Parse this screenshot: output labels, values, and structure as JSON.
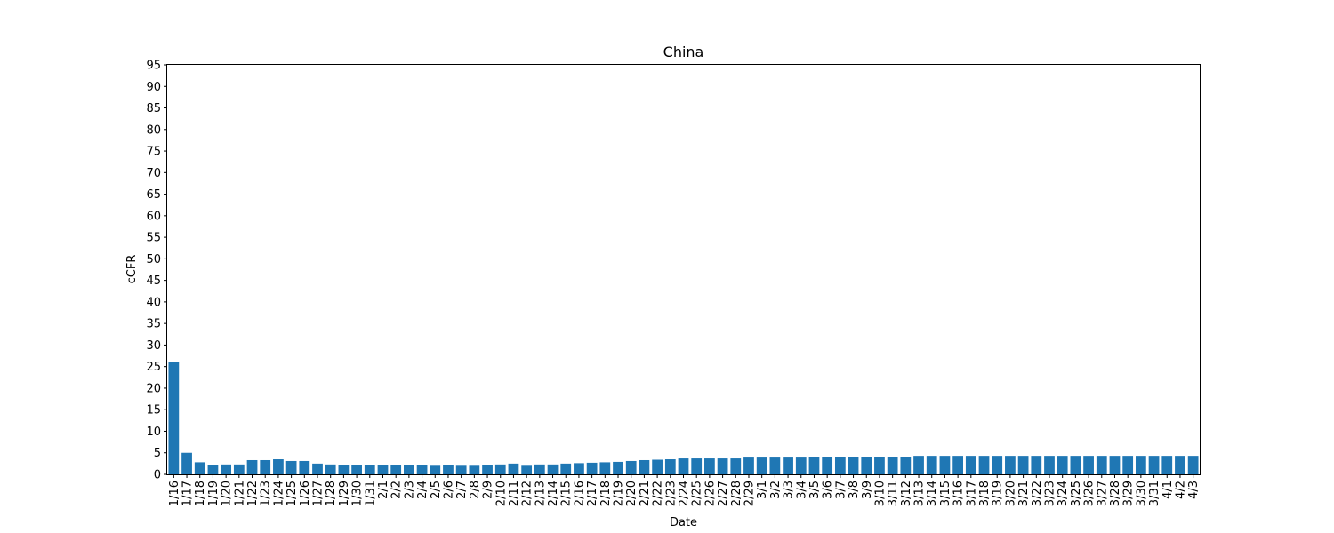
{
  "chart_data": {
    "type": "bar",
    "title": "China",
    "xlabel": "Date",
    "ylabel": "cCFR",
    "ylim": [
      0,
      95
    ],
    "yticks": [
      0,
      5,
      10,
      15,
      20,
      25,
      30,
      35,
      40,
      45,
      50,
      55,
      60,
      65,
      70,
      75,
      80,
      85,
      90,
      95
    ],
    "grid": false,
    "legend": "none",
    "bar_color": "#1f77b4",
    "categories": [
      "1/16",
      "1/17",
      "1/18",
      "1/19",
      "1/20",
      "1/21",
      "1/22",
      "1/23",
      "1/24",
      "1/25",
      "1/26",
      "1/27",
      "1/28",
      "1/29",
      "1/30",
      "1/31",
      "2/1",
      "2/2",
      "2/3",
      "2/4",
      "2/5",
      "2/6",
      "2/7",
      "2/8",
      "2/9",
      "2/10",
      "2/11",
      "2/12",
      "2/13",
      "2/14",
      "2/15",
      "2/16",
      "2/17",
      "2/18",
      "2/19",
      "2/20",
      "2/21",
      "2/22",
      "2/23",
      "2/24",
      "2/25",
      "2/26",
      "2/27",
      "2/28",
      "2/29",
      "3/1",
      "3/2",
      "3/3",
      "3/4",
      "3/5",
      "3/6",
      "3/7",
      "3/8",
      "3/9",
      "3/10",
      "3/11",
      "3/12",
      "3/13",
      "3/14",
      "3/15",
      "3/16",
      "3/17",
      "3/18",
      "3/19",
      "3/20",
      "3/21",
      "3/22",
      "3/23",
      "3/24",
      "3/25",
      "3/26",
      "3/27",
      "3/28",
      "3/29",
      "3/30",
      "3/31",
      "4/1",
      "4/2",
      "4/3"
    ],
    "values": [
      26.1,
      5.0,
      2.8,
      2.1,
      2.3,
      2.3,
      3.3,
      3.3,
      3.5,
      3.1,
      3.1,
      2.5,
      2.3,
      2.2,
      2.2,
      2.2,
      2.2,
      2.1,
      2.1,
      2.1,
      2.0,
      2.1,
      2.0,
      2.0,
      2.2,
      2.3,
      2.5,
      2.0,
      2.3,
      2.3,
      2.5,
      2.6,
      2.7,
      2.8,
      2.9,
      3.1,
      3.3,
      3.4,
      3.5,
      3.7,
      3.7,
      3.7,
      3.7,
      3.7,
      3.9,
      3.9,
      3.9,
      3.9,
      3.9,
      4.1,
      4.1,
      4.1,
      4.1,
      4.1,
      4.1,
      4.1,
      4.1,
      4.3,
      4.3,
      4.3,
      4.3,
      4.3,
      4.3,
      4.3,
      4.3,
      4.3,
      4.3,
      4.3,
      4.3,
      4.3,
      4.3,
      4.3,
      4.3,
      4.3,
      4.3,
      4.3,
      4.3,
      4.3,
      4.3
    ]
  }
}
